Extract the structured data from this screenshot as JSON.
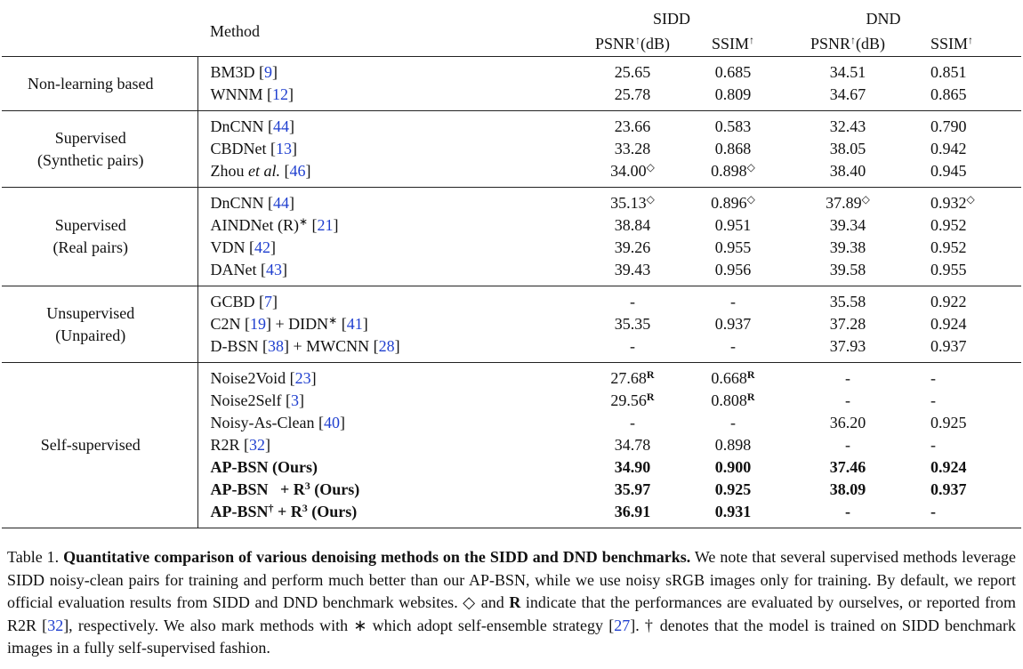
{
  "table": {
    "header": {
      "method": "Method",
      "sidd": "SIDD",
      "dnd": "DND",
      "cols": [
        [
          "PSNR",
          {
            "sup": "↑"
          },
          "(dB)"
        ],
        [
          "SSIM",
          {
            "sup": "↑"
          }
        ],
        [
          "PSNR",
          {
            "sup": "↑"
          },
          "(dB)"
        ],
        [
          "SSIM",
          {
            "sup": "↑"
          }
        ]
      ]
    },
    "groups": [
      {
        "label": [
          "Non-learning based"
        ],
        "rows": [
          {
            "method": [
              "BM3D [",
              {
                "cite": "9"
              },
              "]"
            ],
            "cells": [
              "25.65",
              "0.685",
              "34.51",
              "0.851"
            ]
          },
          {
            "method": [
              "WNNM [",
              {
                "cite": "12"
              },
              "]"
            ],
            "cells": [
              "25.78",
              "0.809",
              "34.67",
              "0.865"
            ]
          }
        ]
      },
      {
        "label": [
          "Supervised",
          "(Synthetic pairs)"
        ],
        "rows": [
          {
            "method": [
              "DnCNN [",
              {
                "cite": "44"
              },
              "]"
            ],
            "cells": [
              "23.66",
              "0.583",
              "32.43",
              "0.790"
            ]
          },
          {
            "method": [
              "CBDNet [",
              {
                "cite": "13"
              },
              "]"
            ],
            "cells": [
              "33.28",
              "0.868",
              "38.05",
              "0.942"
            ]
          },
          {
            "method": [
              "Zhou ",
              {
                "it": "et al."
              },
              " [",
              {
                "cite": "46"
              },
              "]"
            ],
            "cells": [
              {
                "v": "34.00",
                "sup": "◇"
              },
              {
                "v": "0.898",
                "sup": "◇"
              },
              "38.40",
              "0.945"
            ]
          }
        ]
      },
      {
        "label": [
          "Supervised",
          "(Real pairs)"
        ],
        "rows": [
          {
            "method": [
              "DnCNN [",
              {
                "cite": "44"
              },
              "]"
            ],
            "cells": [
              {
                "v": "35.13",
                "sup": "◇"
              },
              {
                "v": "0.896",
                "sup": "◇"
              },
              {
                "v": "37.89",
                "sup": "◇"
              },
              {
                "v": "0.932",
                "sup": "◇"
              }
            ]
          },
          {
            "method": [
              "AINDNet (R)",
              {
                "sup": "∗"
              },
              " [",
              {
                "cite": "21"
              },
              "]"
            ],
            "cells": [
              "38.84",
              "0.951",
              "39.34",
              "0.952"
            ]
          },
          {
            "method": [
              "VDN [",
              {
                "cite": "42"
              },
              "]"
            ],
            "cells": [
              "39.26",
              "0.955",
              "39.38",
              "0.952"
            ]
          },
          {
            "method": [
              "DANet [",
              {
                "cite": "43"
              },
              "]"
            ],
            "cells": [
              "39.43",
              "0.956",
              "39.58",
              "0.955"
            ]
          }
        ]
      },
      {
        "label": [
          "Unsupervised",
          "(Unpaired)"
        ],
        "rows": [
          {
            "method": [
              "GCBD [",
              {
                "cite": "7"
              },
              "]"
            ],
            "cells": [
              "-",
              "-",
              "35.58",
              "0.922"
            ]
          },
          {
            "method": [
              "C2N [",
              {
                "cite": "19"
              },
              "] + DIDN",
              {
                "sup": "∗"
              },
              " [",
              {
                "cite": "41"
              },
              "]"
            ],
            "cells": [
              "35.35",
              "0.937",
              "37.28",
              "0.924"
            ]
          },
          {
            "method": [
              "D-BSN [",
              {
                "cite": "38"
              },
              "] + MWCNN [",
              {
                "cite": "28"
              },
              "]"
            ],
            "cells": [
              "-",
              "-",
              "37.93",
              "0.937"
            ]
          }
        ]
      },
      {
        "label": [
          "Self-supervised"
        ],
        "rows": [
          {
            "method": [
              "Noise2Void [",
              {
                "cite": "23"
              },
              "]"
            ],
            "cells": [
              {
                "v": "27.68",
                "supb": "R"
              },
              {
                "v": "0.668",
                "supb": "R"
              },
              "-",
              "-"
            ]
          },
          {
            "method": [
              "Noise2Self [",
              {
                "cite": "3"
              },
              "]"
            ],
            "cells": [
              {
                "v": "29.56",
                "supb": "R"
              },
              {
                "v": "0.808",
                "supb": "R"
              },
              "-",
              "-"
            ]
          },
          {
            "method": [
              "Noisy-As-Clean [",
              {
                "cite": "40"
              },
              "]"
            ],
            "cells": [
              "-",
              "-",
              "36.20",
              "0.925"
            ]
          },
          {
            "method": [
              "R2R [",
              {
                "cite": "32"
              },
              "]"
            ],
            "cells": [
              "34.78",
              "0.898",
              "-",
              "-"
            ]
          },
          {
            "bold": true,
            "method": [
              "AP-BSN (Ours)"
            ],
            "cells": [
              "34.90",
              "0.900",
              "37.46",
              "0.924"
            ]
          },
          {
            "bold": true,
            "method": [
              "AP-BSN   + R",
              {
                "sup": "3"
              },
              " (Ours)"
            ],
            "cells": [
              "35.97",
              "0.925",
              "38.09",
              "0.937"
            ]
          },
          {
            "bold": true,
            "method": [
              "AP-BSN",
              {
                "sup": "†"
              },
              " + R",
              {
                "sup": "3"
              },
              " (Ours)"
            ],
            "cells": [
              "36.91",
              "0.931",
              "-",
              "-"
            ]
          }
        ]
      }
    ]
  },
  "caption": [
    "Table 1. ",
    {
      "b": "Quantitative comparison of various denoising methods on the SIDD and DND benchmarks."
    },
    " We note that several supervised methods leverage SIDD noisy-clean pairs for training and perform much better than our AP-BSN, while we use noisy sRGB images only for training.  By default, we report official evaluation results from SIDD and DND benchmark websites. ◇ and ",
    {
      "b": "R"
    },
    " indicate that the performances are evaluated by ourselves, or reported from R2R [",
    {
      "cite": "32"
    },
    "], respectively. We also mark methods with ∗ which adopt self-ensemble strategy [",
    {
      "cite": "27"
    },
    "]. † denotes that the model is trained on SIDD benchmark images in a fully self-supervised fashion."
  ]
}
